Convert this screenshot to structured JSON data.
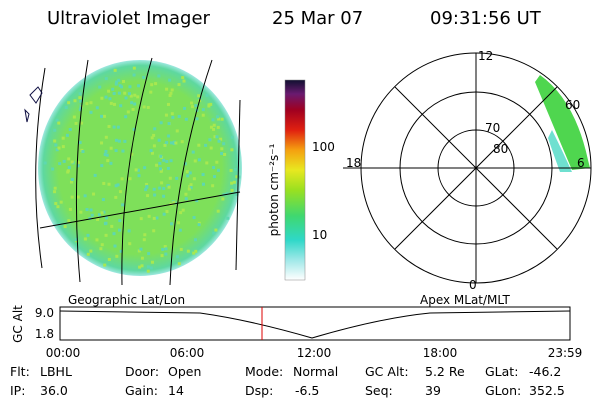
{
  "header": {
    "title": "Ultraviolet Imager",
    "date": "25 Mar 07",
    "time": "09:31:56 UT"
  },
  "colorbar": {
    "label": "photon cm⁻²s⁻¹",
    "ticks": [
      "100",
      "10"
    ]
  },
  "polar": {
    "mlt_labels": [
      "12",
      "18",
      "6",
      "0"
    ],
    "lat_labels": [
      "60",
      "70",
      "80"
    ]
  },
  "image_labels": {
    "left": "Geographic Lat/Lon",
    "right": "Apex MLat/MLT"
  },
  "altitude_plot": {
    "axis_label": "GC Alt",
    "yticks": [
      "9.0",
      "1.8"
    ],
    "xticks": [
      "00:00",
      "06:00",
      "12:00",
      "18:00",
      "23:59"
    ]
  },
  "info": [
    [
      {
        "label": "Flt:",
        "value": "LBHL"
      },
      {
        "label": "IP:",
        "value": "36.0"
      }
    ],
    [
      {
        "label": "Door:",
        "value": "Open"
      },
      {
        "label": "Gain:",
        "value": "14"
      }
    ],
    [
      {
        "label": "Mode:",
        "value": "Normal"
      },
      {
        "label": "Dsp:",
        "value": "-6.5"
      }
    ],
    [
      {
        "label": "GC Alt:",
        "value": "5.2 Re"
      },
      {
        "label": "Seq:",
        "value": "39"
      }
    ],
    [
      {
        "label": "GLat:",
        "value": "-46.2"
      },
      {
        "label": "GLon:",
        "value": "352.5"
      }
    ]
  ]
}
